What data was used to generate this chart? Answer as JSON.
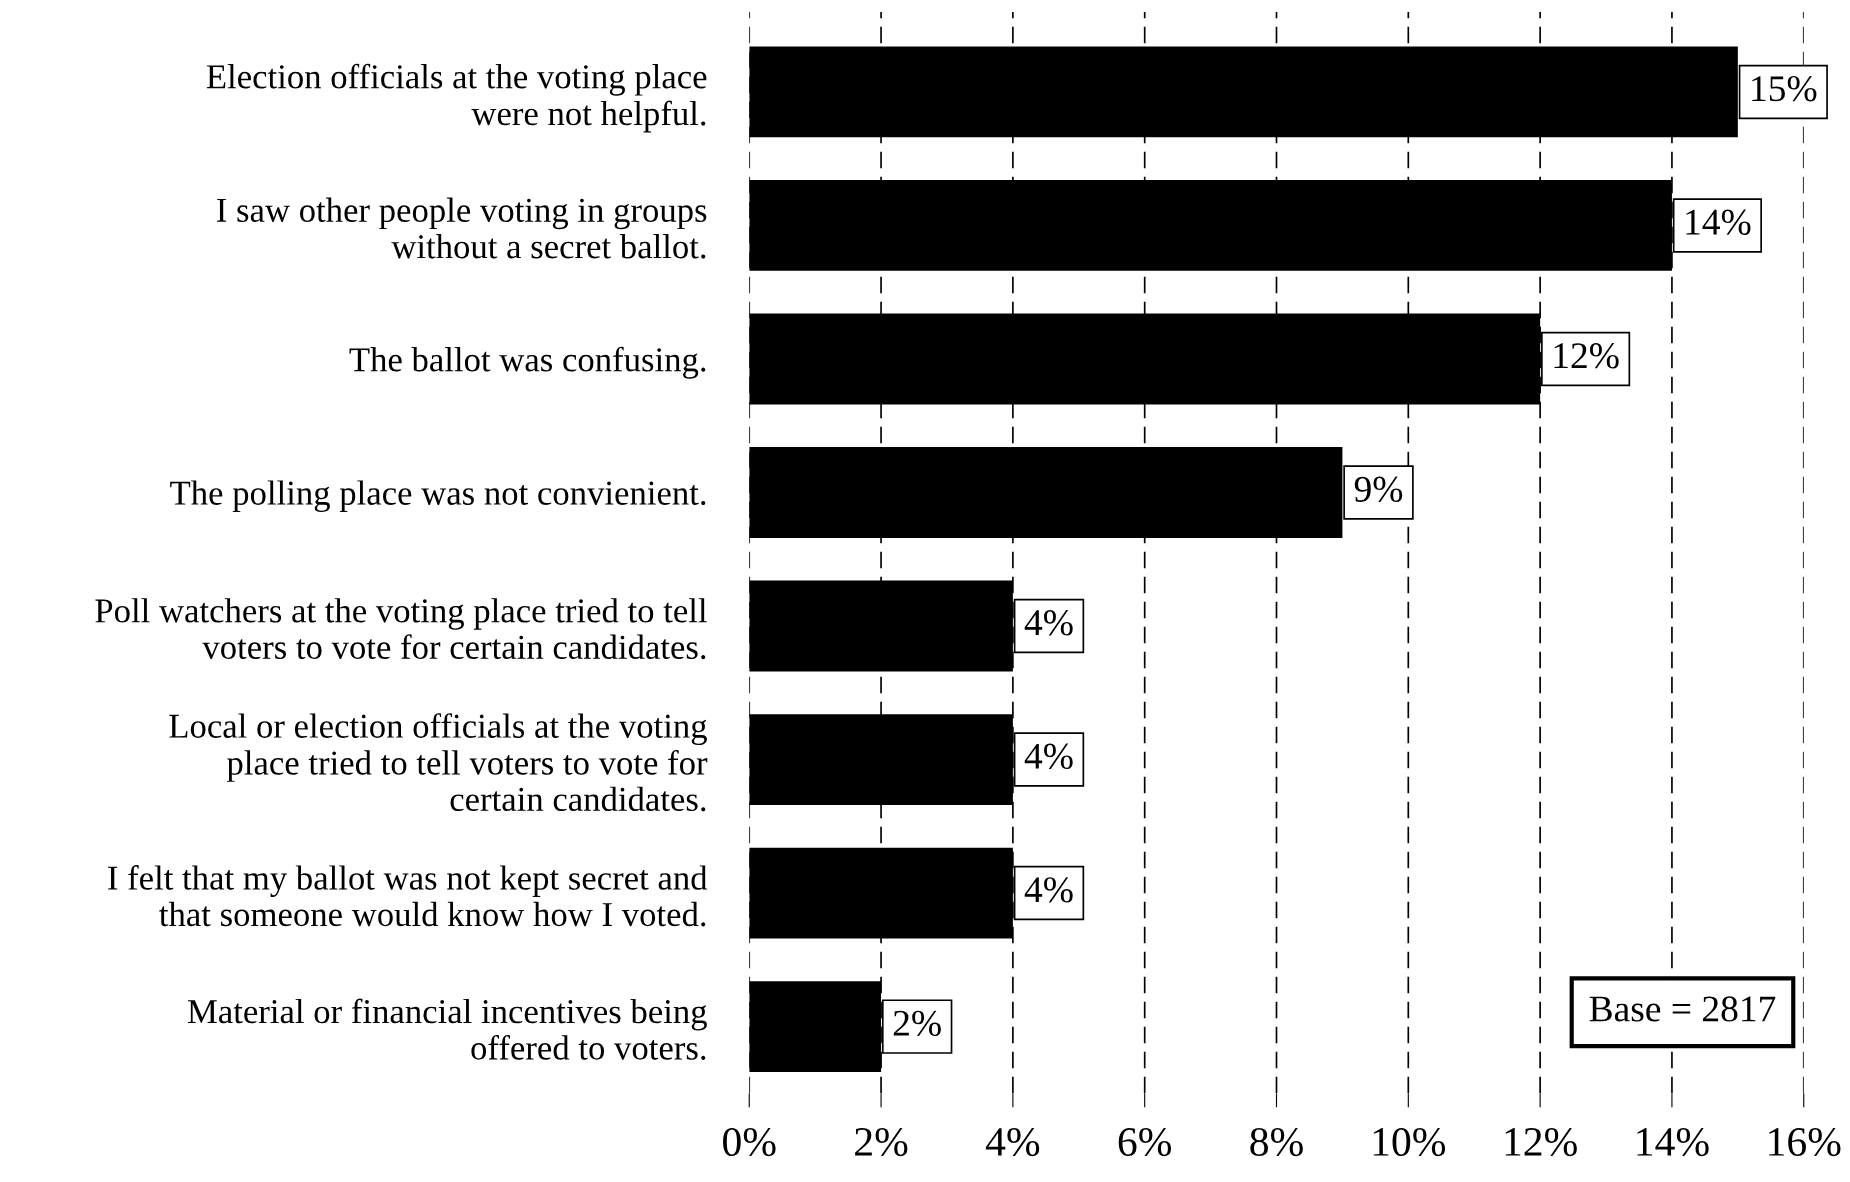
{
  "chart_data": {
    "type": "bar",
    "orientation": "horizontal",
    "categories": [
      "Election officials at the voting place\nwere not helpful.",
      "I saw other people voting in groups\nwithout a secret ballot.",
      "The ballot was confusing.",
      "The polling place was not convienient.",
      "Poll watchers at the voting place tried to tell\nvoters to vote for certain candidates.",
      "Local or election officials at the voting\nplace tried to tell voters to vote for\ncertain candidates.",
      "I felt that my ballot was not kept secret and\nthat someone would know how I voted.",
      "Material or financial incentives being\noffered to voters."
    ],
    "values": [
      15,
      14,
      12,
      9,
      4,
      4,
      4,
      2
    ],
    "color": "#000000",
    "value_labels": [
      "15%",
      "14%",
      "12%",
      "9%",
      "4%",
      "4%",
      "4%",
      "2%"
    ],
    "xlim": [
      0,
      16
    ],
    "xticks": [
      {
        "value": 0,
        "label": "0%"
      },
      {
        "value": 2,
        "label": "2%"
      },
      {
        "value": 4,
        "label": "4%"
      },
      {
        "value": 6,
        "label": "6%"
      },
      {
        "value": 8,
        "label": "8%"
      },
      {
        "value": 10,
        "label": "10%"
      },
      {
        "value": 12,
        "label": "12%"
      },
      {
        "value": 14,
        "label": "14%"
      },
      {
        "value": 16,
        "label": "16%"
      }
    ],
    "grid": "x",
    "annotations": [
      "Base = 2817"
    ]
  }
}
